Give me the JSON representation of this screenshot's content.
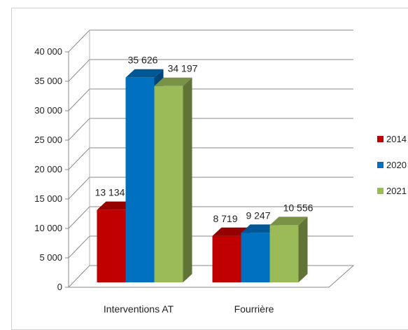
{
  "chart_data": {
    "type": "bar",
    "categories": [
      "Interventions AT",
      "Fourrière"
    ],
    "series": [
      {
        "name": "2014",
        "values": [
          13134,
          8719
        ],
        "labels": [
          "13 134",
          "8 719"
        ],
        "color": "#c00000"
      },
      {
        "name": "2020",
        "values": [
          35626,
          9247
        ],
        "labels": [
          "35 626",
          "9 247"
        ],
        "color": "#0070c0"
      },
      {
        "name": "2021",
        "values": [
          34197,
          10556
        ],
        "labels": [
          "34 197",
          "10 556"
        ],
        "color": "#9bbb59"
      }
    ],
    "y_ticks": [
      "0",
      "5 000",
      "10 000",
      "15 000",
      "20 000",
      "25 000",
      "30 000",
      "35 000",
      "40 000"
    ],
    "ylim": [
      0,
      40000
    ],
    "grid": true,
    "style": "3d-clustered-column",
    "legend_position": "right"
  }
}
